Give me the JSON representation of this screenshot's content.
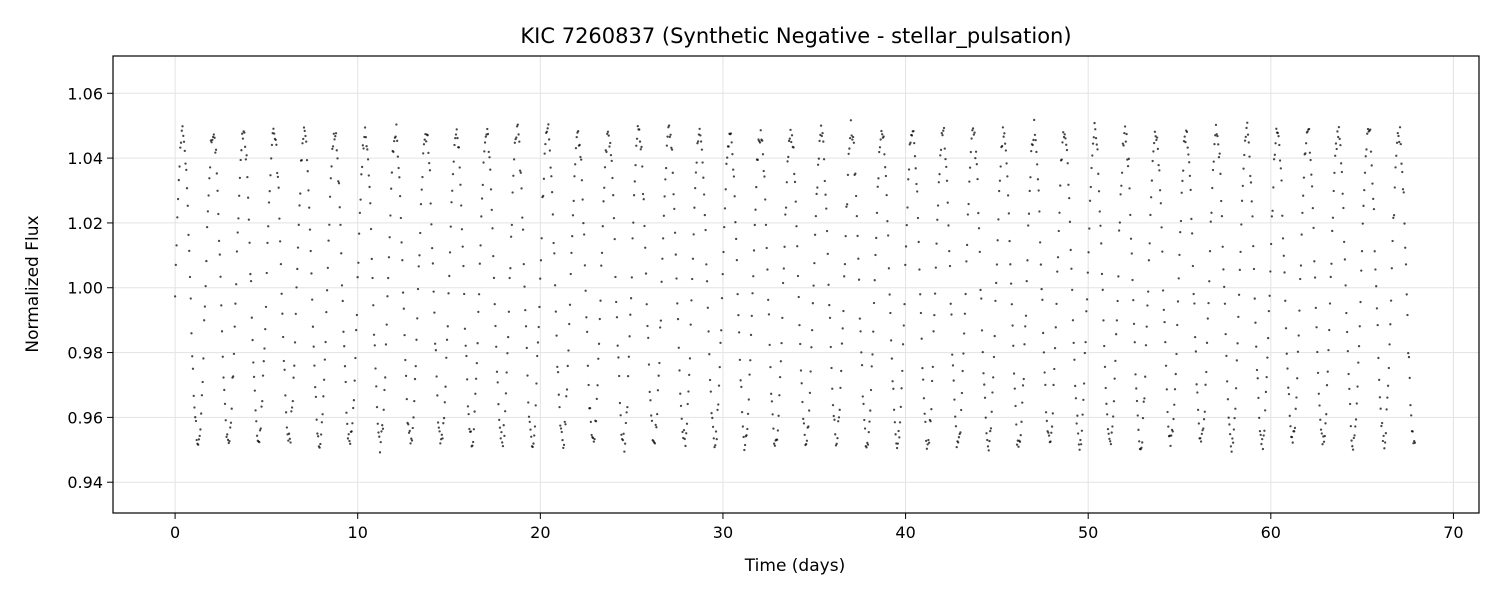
{
  "chart_data": {
    "type": "scatter",
    "title": "KIC 7260837 (Synthetic Negative - stellar_pulsation)",
    "xlabel": "Time (days)",
    "ylabel": "Normalized Flux",
    "xlim": [
      -3.4,
      71.4
    ],
    "ylim": [
      0.9305,
      1.0715
    ],
    "xticks": [
      0,
      10,
      20,
      30,
      40,
      50,
      60,
      70
    ],
    "xtick_labels": [
      "0",
      "10",
      "20",
      "30",
      "40",
      "50",
      "60",
      "70"
    ],
    "yticks": [
      0.94,
      0.96,
      0.98,
      1.0,
      1.02,
      1.04,
      1.06
    ],
    "ytick_labels": [
      "0.94",
      "0.96",
      "0.98",
      "1.00",
      "1.02",
      "1.04",
      "1.06"
    ],
    "grid": true,
    "legend": "none",
    "marker_color": "#000000",
    "series": [
      {
        "sampling": "regular cadence from t = 0 to t = 67.9 days, dt = 0.0408 days",
        "model": "sinusoidal pulsation, period 1.665 days, amplitude 0.048, mean 1.000, phase 0 at t = 0 (rising), gaussian noise sigma 0.0015",
        "t_start": 0.0,
        "t_end": 67.9,
        "dt": 0.0408,
        "period": 1.665,
        "amplitude": 0.048,
        "mean": 1.0,
        "noise_sigma": 0.0015
      }
    ]
  }
}
